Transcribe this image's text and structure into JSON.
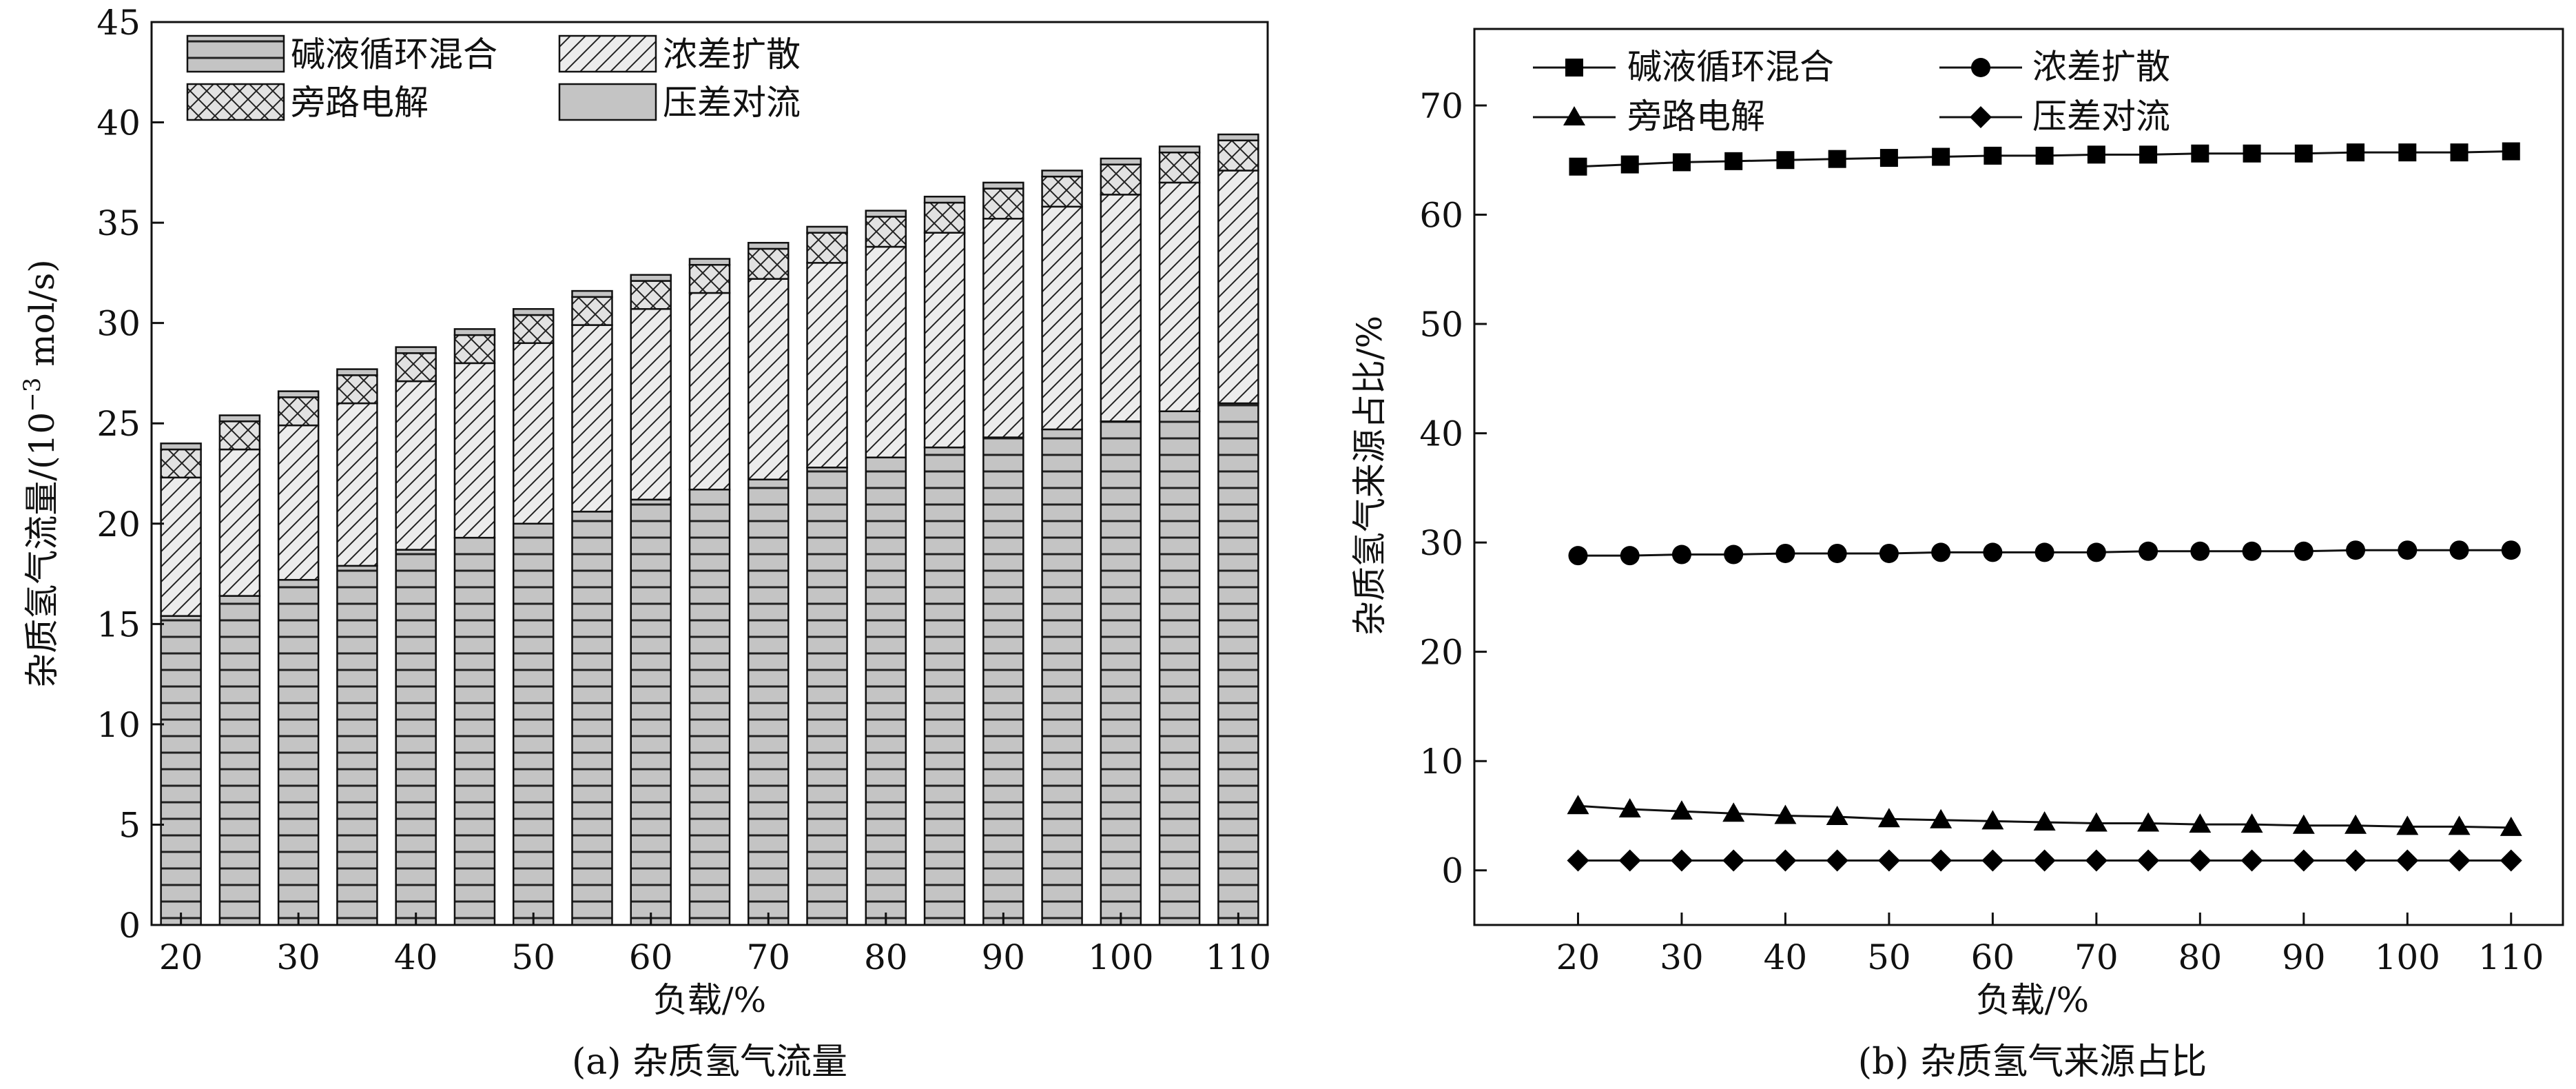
{
  "chart_data": [
    {
      "type": "bar",
      "stacked": true,
      "caption": "(a) 杂质氢气流量",
      "xlabel": "负载/%",
      "ylabel_main": "杂质氢气流量/(10",
      "ylabel_exp": "−3",
      "ylabel_tail": " mol/s)",
      "ylim": [
        0,
        45
      ],
      "yticks": [
        0,
        5,
        10,
        15,
        20,
        25,
        30,
        35,
        40,
        45
      ],
      "x": [
        20,
        25,
        30,
        35,
        40,
        45,
        50,
        55,
        60,
        65,
        70,
        75,
        80,
        85,
        90,
        95,
        100,
        105,
        110
      ],
      "xtick_labels": [
        "20",
        "30",
        "40",
        "50",
        "60",
        "70",
        "80",
        "90",
        "100",
        "110"
      ],
      "legend_position": "top-left",
      "series": [
        {
          "name": "碱液循环混合",
          "pattern": "horizontal-lines",
          "values": [
            15.4,
            16.4,
            17.2,
            17.9,
            18.7,
            19.3,
            20.0,
            20.6,
            21.2,
            21.7,
            22.2,
            22.8,
            23.3,
            23.8,
            24.3,
            24.7,
            25.1,
            25.6,
            26.0
          ]
        },
        {
          "name": "浓差扩散",
          "pattern": "diagonal-hatch",
          "values": [
            6.9,
            7.3,
            7.7,
            8.1,
            8.4,
            8.7,
            9.0,
            9.3,
            9.5,
            9.8,
            10.0,
            10.2,
            10.5,
            10.7,
            10.9,
            11.1,
            11.3,
            11.4,
            11.6
          ]
        },
        {
          "name": "旁路电解",
          "pattern": "cross-hatch",
          "values": [
            1.4,
            1.4,
            1.4,
            1.4,
            1.4,
            1.4,
            1.4,
            1.4,
            1.4,
            1.4,
            1.5,
            1.5,
            1.5,
            1.5,
            1.5,
            1.5,
            1.5,
            1.5,
            1.5
          ]
        },
        {
          "name": "压差对流",
          "pattern": "solid-gray",
          "values": [
            0.3,
            0.3,
            0.3,
            0.3,
            0.3,
            0.3,
            0.3,
            0.3,
            0.3,
            0.3,
            0.3,
            0.3,
            0.3,
            0.3,
            0.3,
            0.3,
            0.3,
            0.3,
            0.3
          ]
        }
      ]
    },
    {
      "type": "line",
      "caption": "(b) 杂质氢气来源占比",
      "xlabel": "负载/%",
      "ylabel": "杂质氢气来源占比/%",
      "ylim": [
        -5,
        77
      ],
      "yticks": [
        0,
        10,
        20,
        30,
        40,
        50,
        60,
        70
      ],
      "xlim": [
        10,
        115
      ],
      "xticks": [
        20,
        30,
        40,
        50,
        60,
        70,
        80,
        90,
        100,
        110
      ],
      "x": [
        20,
        25,
        30,
        35,
        40,
        45,
        50,
        55,
        60,
        65,
        70,
        75,
        80,
        85,
        90,
        95,
        100,
        105,
        110
      ],
      "legend_position": "top-left",
      "series": [
        {
          "name": "碱液循环混合",
          "marker": "square",
          "values": [
            64.4,
            64.6,
            64.8,
            64.9,
            65.0,
            65.1,
            65.2,
            65.3,
            65.4,
            65.4,
            65.5,
            65.5,
            65.6,
            65.6,
            65.6,
            65.7,
            65.7,
            65.7,
            65.8
          ]
        },
        {
          "name": "浓差扩散",
          "marker": "circle",
          "values": [
            28.8,
            28.8,
            28.9,
            28.9,
            29.0,
            29.0,
            29.0,
            29.1,
            29.1,
            29.1,
            29.1,
            29.2,
            29.2,
            29.2,
            29.2,
            29.3,
            29.3,
            29.3,
            29.3
          ]
        },
        {
          "name": "旁路电解",
          "marker": "triangle",
          "values": [
            5.9,
            5.6,
            5.4,
            5.2,
            5.0,
            4.9,
            4.7,
            4.6,
            4.5,
            4.4,
            4.3,
            4.3,
            4.2,
            4.2,
            4.1,
            4.1,
            4.0,
            4.0,
            3.9
          ]
        },
        {
          "name": "压差对流",
          "marker": "diamond",
          "values": [
            0.9,
            0.9,
            0.9,
            0.9,
            0.9,
            0.9,
            0.9,
            0.9,
            0.9,
            0.9,
            0.9,
            0.9,
            0.9,
            0.9,
            0.9,
            0.9,
            0.9,
            0.9,
            0.9
          ]
        }
      ]
    }
  ]
}
